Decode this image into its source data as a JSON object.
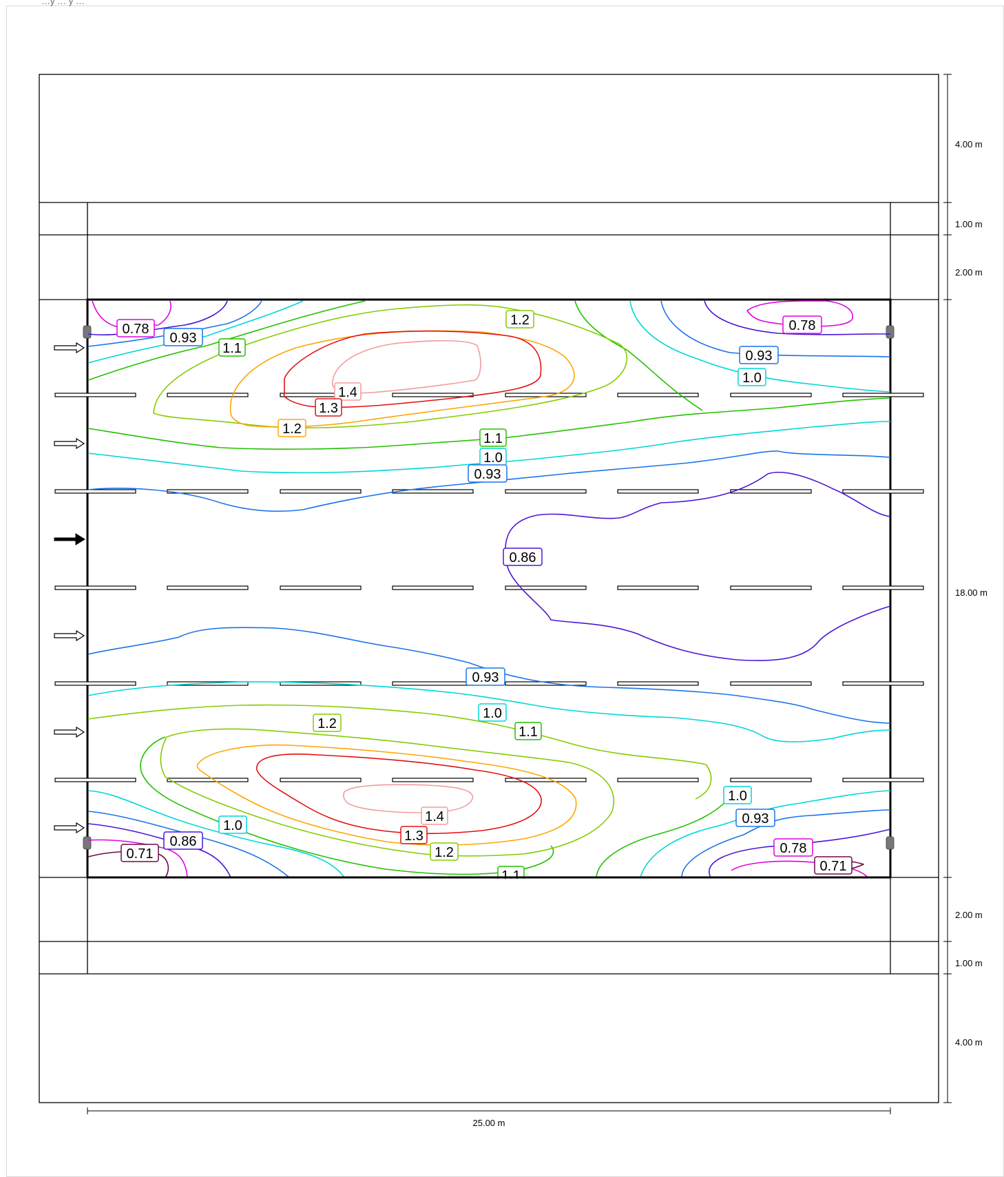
{
  "header": {
    "partial_text": "…y … y …"
  },
  "dimensions": {
    "right": [
      "4.00 m",
      "1.00 m",
      "2.00 m",
      "18.00 m",
      "2.00 m",
      "1.00 m",
      "4.00 m"
    ],
    "bottom": "25.00 m"
  },
  "contour_labels": [
    {
      "text": "0.78",
      "color": "#e000e0"
    },
    {
      "text": "0.93",
      "color": "#1a73e8"
    },
    {
      "text": "1.1",
      "color": "#22c000"
    },
    {
      "text": "1.2",
      "color": "#84cc00"
    },
    {
      "text": "1.4",
      "color": "#f39a9a"
    },
    {
      "text": "1.3",
      "color": "#e01010"
    },
    {
      "text": "1.2",
      "color": "#ffa500"
    },
    {
      "text": "0.78",
      "color": "#e000e0"
    },
    {
      "text": "0.93",
      "color": "#1a73e8"
    },
    {
      "text": "1.0",
      "color": "#00d6d6"
    },
    {
      "text": "1.1",
      "color": "#22c000"
    },
    {
      "text": "1.0",
      "color": "#00d6d6"
    },
    {
      "text": "0.93",
      "color": "#1a73e8"
    },
    {
      "text": "0.86",
      "color": "#4b16d6"
    },
    {
      "text": "0.93",
      "color": "#1a73e8"
    },
    {
      "text": "1.0",
      "color": "#00d6d6"
    },
    {
      "text": "1.2",
      "color": "#84cc00"
    },
    {
      "text": "1.1",
      "color": "#22c000"
    },
    {
      "text": "1.0",
      "color": "#00d6d6"
    },
    {
      "text": "0.93",
      "color": "#1a73e8"
    },
    {
      "text": "1.4",
      "color": "#f39a9a"
    },
    {
      "text": "1.3",
      "color": "#e01010"
    },
    {
      "text": "1.2",
      "color": "#84cc00"
    },
    {
      "text": "1.0",
      "color": "#00d6d6"
    },
    {
      "text": "0.86",
      "color": "#4b16d6"
    },
    {
      "text": "0.71",
      "color": "#6a0a4a"
    },
    {
      "text": "0.78",
      "color": "#e000e0"
    },
    {
      "text": "0.71",
      "color": "#6a0a4a"
    },
    {
      "text": "1.1",
      "color": "#22c000"
    }
  ],
  "colors": {
    "level_0_71": "#6a0a4a",
    "level_0_78": "#e000e0",
    "level_0_86": "#4b16d6",
    "level_0_93": "#1a73e8",
    "level_1_0": "#00d6d6",
    "level_1_1": "#22c000",
    "level_1_2_green": "#84cc00",
    "level_1_2_orange": "#ffa500",
    "level_1_3": "#e01010",
    "level_1_4": "#f39a9a"
  }
}
